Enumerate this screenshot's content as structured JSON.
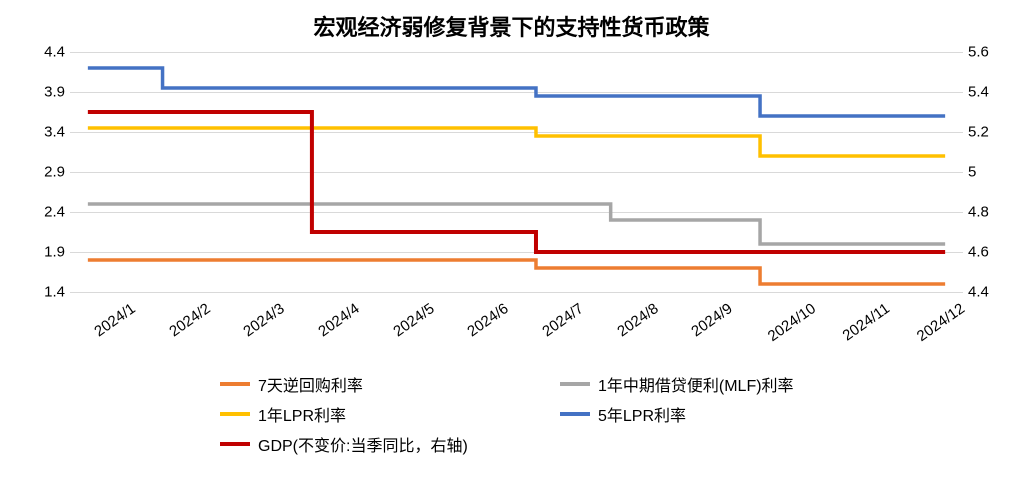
{
  "title": "宏观经济弱修复背景下的支持性货币政策",
  "title_fontsize": 22,
  "background_color": "#ffffff",
  "grid_color": "#d9d9d9",
  "axis_fontsize": 15,
  "legend_fontsize": 16,
  "x_categories": [
    "2024/1",
    "2024/2",
    "2024/3",
    "2024/4",
    "2024/5",
    "2024/6",
    "2024/7",
    "2024/8",
    "2024/9",
    "2024/10",
    "2024/11",
    "2024/12"
  ],
  "x_label_rotation": -35,
  "left_axis": {
    "min": 1.4,
    "max": 4.4,
    "step": 0.5,
    "ticks": [
      1.4,
      1.9,
      2.4,
      2.9,
      3.4,
      3.9,
      4.4
    ]
  },
  "right_axis": {
    "min": 4.4,
    "max": 5.6,
    "step": 0.2,
    "ticks": [
      4.4,
      4.6,
      4.8,
      5.0,
      5.2,
      5.4,
      5.6
    ]
  },
  "series": [
    {
      "name": "7天逆回购利率",
      "label": "7天逆回购利率",
      "color": "#ed7d31",
      "line_width": 3.5,
      "axis": "left",
      "step": true,
      "data": [
        1.8,
        1.8,
        1.8,
        1.8,
        1.8,
        1.8,
        1.7,
        1.7,
        1.7,
        1.5,
        1.5,
        1.5
      ]
    },
    {
      "name": "1年MLF利率",
      "label": "1年中期借贷便利(MLF)利率",
      "color": "#a6a6a6",
      "line_width": 3.5,
      "axis": "left",
      "step": true,
      "data": [
        2.5,
        2.5,
        2.5,
        2.5,
        2.5,
        2.5,
        2.5,
        2.3,
        2.3,
        2.0,
        2.0,
        2.0
      ]
    },
    {
      "name": "1年LPR利率",
      "label": "1年LPR利率",
      "color": "#ffc000",
      "line_width": 3.5,
      "axis": "left",
      "step": true,
      "data": [
        3.45,
        3.45,
        3.45,
        3.45,
        3.45,
        3.45,
        3.35,
        3.35,
        3.35,
        3.1,
        3.1,
        3.1
      ]
    },
    {
      "name": "5年LPR利率",
      "label": "5年LPR利率",
      "color": "#4472c4",
      "line_width": 3.5,
      "axis": "left",
      "step": true,
      "data": [
        4.2,
        3.95,
        3.95,
        3.95,
        3.95,
        3.95,
        3.85,
        3.85,
        3.85,
        3.6,
        3.6,
        3.6
      ]
    },
    {
      "name": "GDP当季同比",
      "label": "GDP(不变价:当季同比，右轴)",
      "color": "#c00000",
      "line_width": 4,
      "axis": "right",
      "step": true,
      "data": [
        5.3,
        5.3,
        5.3,
        4.7,
        4.7,
        4.7,
        4.6,
        4.6,
        4.6,
        4.6,
        null,
        null
      ]
    }
  ],
  "legend_layout": [
    [
      "7天逆回购利率",
      "1年MLF利率"
    ],
    [
      "1年LPR利率",
      "5年LPR利率"
    ],
    [
      "GDP当季同比"
    ]
  ]
}
